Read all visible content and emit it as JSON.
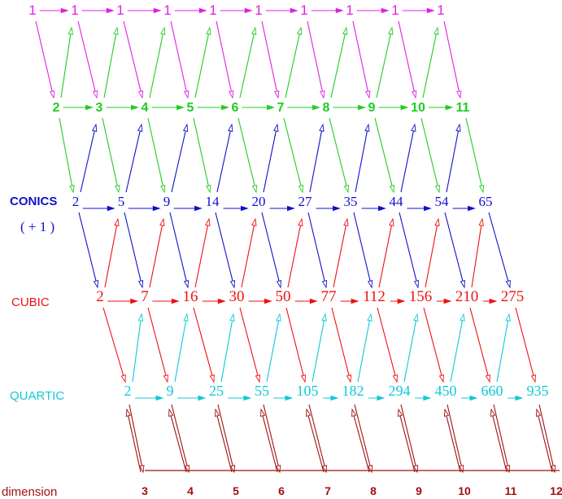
{
  "colors": {
    "magenta": "#e020e0",
    "green": "#22cc22",
    "blue": "#1010cc",
    "red": "#ee1111",
    "cyan": "#10c8d8",
    "darkred": "#a01010"
  },
  "rows": {
    "ones": {
      "label": "",
      "sublabel": "",
      "values": [
        "1",
        "1",
        "1",
        "1",
        "1",
        "1",
        "1",
        "1",
        "1",
        "1"
      ]
    },
    "linear": {
      "label": "",
      "sublabel": "",
      "values": [
        "2",
        "3",
        "4",
        "5",
        "6",
        "7",
        "8",
        "9",
        "10",
        "11"
      ]
    },
    "conics": {
      "label": "CONICS",
      "sublabel": "( + 1 )",
      "values": [
        "2",
        "5",
        "9",
        "14",
        "20",
        "27",
        "35",
        "44",
        "54",
        "65"
      ]
    },
    "cubic": {
      "label": "CUBIC",
      "sublabel": "",
      "values": [
        "2",
        "7",
        "16",
        "30",
        "50",
        "77",
        "112",
        "156",
        "210",
        "275"
      ]
    },
    "quartic": {
      "label": "QUARTIC",
      "sublabel": "",
      "values": [
        "2",
        "9",
        "25",
        "55",
        "105",
        "182",
        "294",
        "450",
        "660",
        "935"
      ]
    }
  },
  "dimension": {
    "label": "dimension",
    "values": [
      "3",
      "4",
      "5",
      "6",
      "7",
      "8",
      "9",
      "10",
      "11",
      "12"
    ]
  }
}
